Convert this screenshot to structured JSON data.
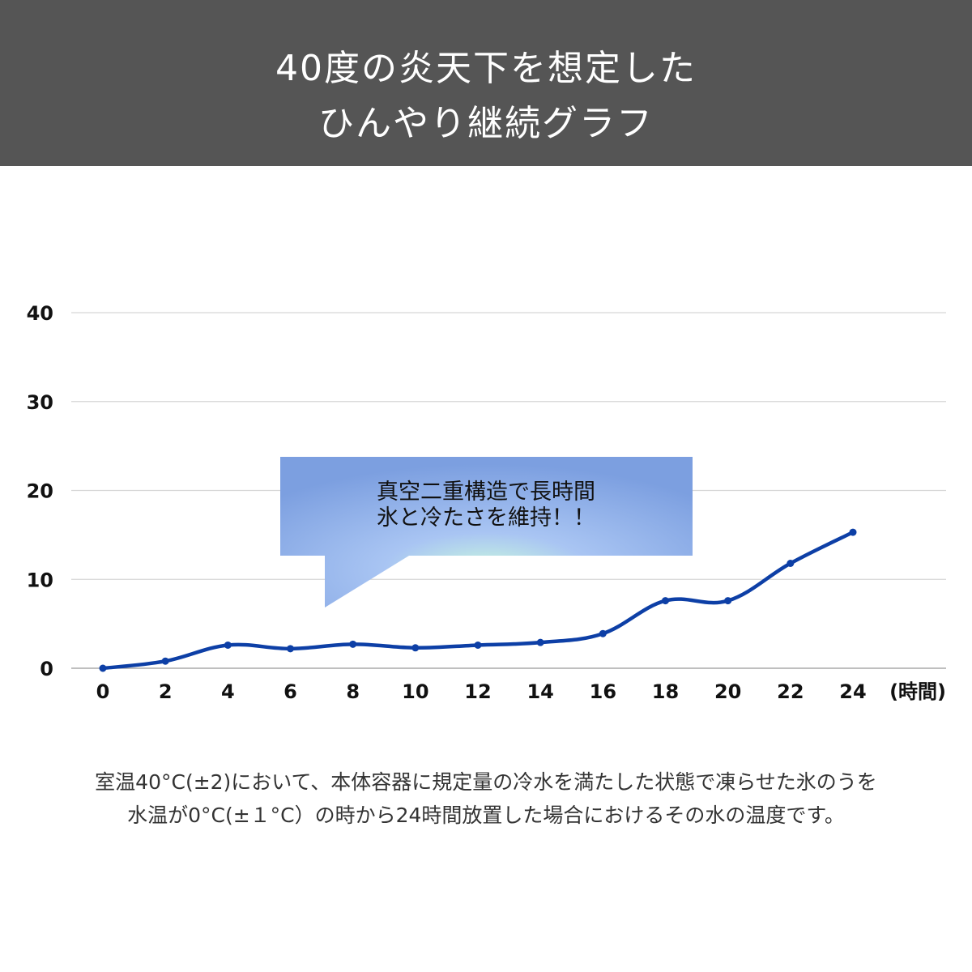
{
  "header": {
    "title_line1": "40度の炎天下を想定した",
    "title_line2": "ひんやり継続グラフ"
  },
  "chart_data": {
    "type": "line",
    "title": "",
    "xlabel": "(時間)",
    "ylabel": "",
    "x": [
      0,
      2,
      4,
      6,
      8,
      10,
      12,
      14,
      16,
      18,
      20,
      22,
      24
    ],
    "series": [
      {
        "values": [
          0,
          0.8,
          2.6,
          2.2,
          2.7,
          2.3,
          2.6,
          2.9,
          3.9,
          7.6,
          7.6,
          11.8,
          15.3
        ]
      }
    ],
    "xticks": [
      "0",
      "2",
      "4",
      "6",
      "8",
      "10",
      "12",
      "14",
      "16",
      "18",
      "20",
      "22",
      "24"
    ],
    "yticks": [
      "0",
      "10",
      "20",
      "30",
      "40"
    ],
    "xlim": [
      0,
      24
    ],
    "ylim": [
      0,
      40
    ],
    "grid": true,
    "line_color": "#0d3fa6",
    "annotation": {
      "line1": "真空二重構造で長時間",
      "line2": "氷と冷たさを維持！！"
    }
  },
  "caption": {
    "line1": "室温40°C(±2)において、本体容器に規定量の冷水を満たした状態で凍らせた氷のうを",
    "line2": "水温が0°C(±１°C）の時から24時間放置した場合におけるその水の温度です。"
  }
}
